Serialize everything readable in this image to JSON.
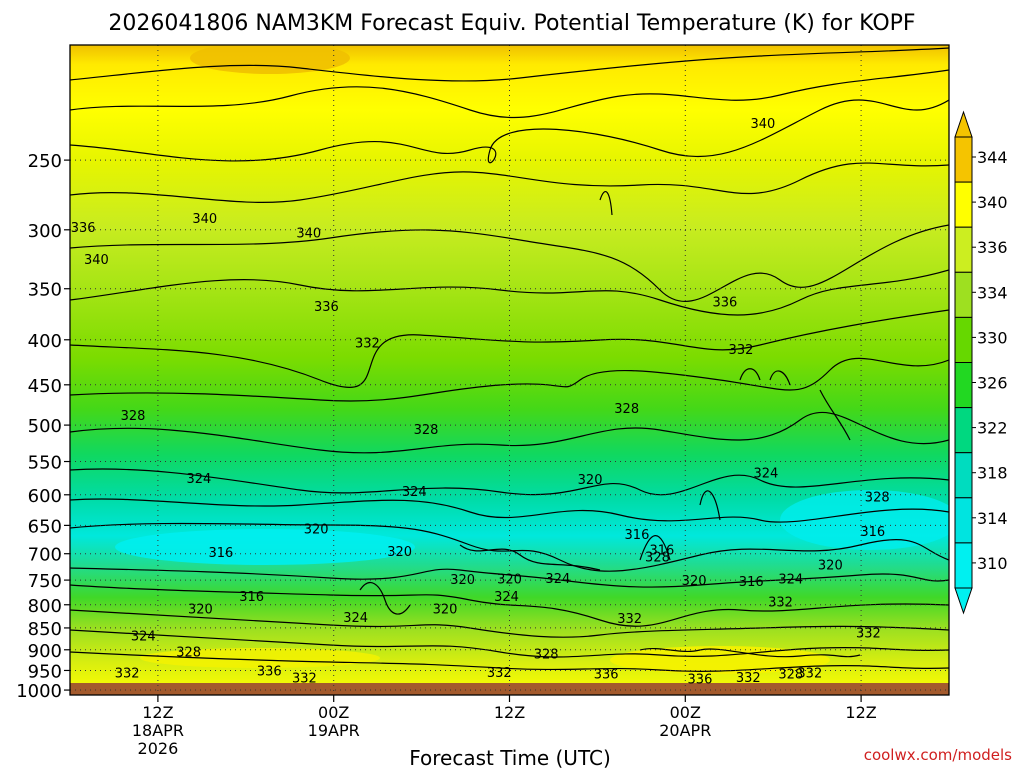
{
  "chart_data": {
    "type": "heatmap",
    "title": "2026041806 NAM3KM Forecast Equiv. Potential Temperature (K) for KOPF",
    "xlabel": "Forecast Time (UTC)",
    "ylabel": "",
    "yscale": "log",
    "ylim": [
      1013,
      185
    ],
    "xlim_hours": [
      0,
      60
    ],
    "y_ticks": [
      250,
      300,
      350,
      400,
      450,
      500,
      550,
      600,
      650,
      700,
      750,
      800,
      850,
      900,
      950,
      1000
    ],
    "x_ticks": [
      {
        "hour": 6,
        "lines": [
          "12Z",
          "18APR",
          "2026"
        ]
      },
      {
        "hour": 18,
        "lines": [
          "00Z",
          "19APR"
        ]
      },
      {
        "hour": 30,
        "lines": [
          "12Z"
        ]
      },
      {
        "hour": 42,
        "lines": [
          "00Z",
          "20APR"
        ]
      },
      {
        "hour": 54,
        "lines": [
          "12Z"
        ]
      }
    ],
    "colorbar": {
      "labels": [
        344,
        340,
        336,
        334,
        330,
        326,
        322,
        318,
        314,
        310
      ],
      "colors": [
        "#f5c400",
        "#ffff00",
        "#ccee20",
        "#9ee020",
        "#66d800",
        "#22d822",
        "#00d880",
        "#00dcbf",
        "#00e4e0",
        "#00f0f0"
      ]
    },
    "contour_labels": [
      {
        "h": 1.8,
        "p": 324,
        "t": "340"
      },
      {
        "h": 9.2,
        "p": 291,
        "t": "340"
      },
      {
        "h": 16.3,
        "p": 302,
        "t": "340"
      },
      {
        "h": 47.3,
        "p": 227,
        "t": "340"
      },
      {
        "h": 17.5,
        "p": 366,
        "t": "336"
      },
      {
        "h": 0.9,
        "p": 298,
        "t": "336"
      },
      {
        "h": 44.7,
        "p": 362,
        "t": "336"
      },
      {
        "h": 20.3,
        "p": 403,
        "t": "332"
      },
      {
        "h": 45.8,
        "p": 410,
        "t": "332"
      },
      {
        "h": 4.3,
        "p": 487,
        "t": "328"
      },
      {
        "h": 24.3,
        "p": 505,
        "t": "328"
      },
      {
        "h": 38.0,
        "p": 478,
        "t": "328"
      },
      {
        "h": 8.8,
        "p": 574,
        "t": "324"
      },
      {
        "h": 23.5,
        "p": 594,
        "t": "324"
      },
      {
        "h": 47.5,
        "p": 566,
        "t": "324"
      },
      {
        "h": 35.5,
        "p": 576,
        "t": "320"
      },
      {
        "h": 16.8,
        "p": 655,
        "t": "320"
      },
      {
        "h": 22.5,
        "p": 695,
        "t": "320"
      },
      {
        "h": 10.3,
        "p": 697,
        "t": "316"
      },
      {
        "h": 38.7,
        "p": 665,
        "t": "316"
      },
      {
        "h": 12.4,
        "p": 782,
        "t": "316"
      },
      {
        "h": 46.5,
        "p": 752,
        "t": "316"
      },
      {
        "h": 54.8,
        "p": 660,
        "t": "316"
      },
      {
        "h": 49.2,
        "p": 747,
        "t": "324"
      },
      {
        "h": 48.5,
        "p": 793,
        "t": "332"
      },
      {
        "h": 8.9,
        "p": 808,
        "t": "320"
      },
      {
        "h": 25.6,
        "p": 808,
        "t": "320"
      },
      {
        "h": 5.0,
        "p": 867,
        "t": "324"
      },
      {
        "h": 19.5,
        "p": 826,
        "t": "324"
      },
      {
        "h": 8.1,
        "p": 904,
        "t": "328"
      },
      {
        "h": 3.9,
        "p": 955,
        "t": "332"
      },
      {
        "h": 13.6,
        "p": 950,
        "t": "336"
      },
      {
        "h": 16.0,
        "p": 968,
        "t": "332"
      },
      {
        "h": 29.3,
        "p": 954,
        "t": "332"
      },
      {
        "h": 36.6,
        "p": 957,
        "t": "336"
      },
      {
        "h": 43.0,
        "p": 970,
        "t": "336"
      },
      {
        "h": 46.3,
        "p": 967,
        "t": "332"
      },
      {
        "h": 49.2,
        "p": 957,
        "t": "328"
      },
      {
        "h": 50.5,
        "p": 955,
        "t": "332"
      },
      {
        "h": 38.2,
        "p": 828,
        "t": "332"
      },
      {
        "h": 54.5,
        "p": 860,
        "t": "332"
      },
      {
        "h": 32.5,
        "p": 909,
        "t": "328"
      },
      {
        "h": 26.8,
        "p": 748,
        "t": "320"
      },
      {
        "h": 30.0,
        "p": 747,
        "t": "320"
      },
      {
        "h": 33.3,
        "p": 746,
        "t": "324"
      },
      {
        "h": 29.8,
        "p": 782,
        "t": "324"
      },
      {
        "h": 40.4,
        "p": 692,
        "t": "316"
      },
      {
        "h": 40.1,
        "p": 705,
        "t": "328"
      },
      {
        "h": 42.6,
        "p": 750,
        "t": "320"
      },
      {
        "h": 55.1,
        "p": 603,
        "t": "328"
      },
      {
        "h": 51.9,
        "p": 720,
        "t": "320"
      }
    ]
  },
  "credit": "coolwx.com/models"
}
